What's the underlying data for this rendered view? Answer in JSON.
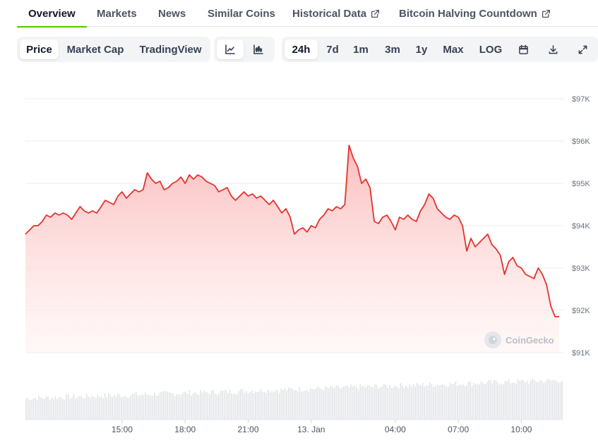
{
  "tabs": [
    {
      "label": "Overview",
      "active": true
    },
    {
      "label": "Markets"
    },
    {
      "label": "News"
    },
    {
      "label": "Similar Coins"
    },
    {
      "label": "Historical Data",
      "external": true
    },
    {
      "label": "Bitcoin Halving Countdown",
      "external": true
    }
  ],
  "toolbar": {
    "view_modes": [
      "Price",
      "Market Cap",
      "TradingView"
    ],
    "chart_style_icons": [
      "line-chart-icon",
      "candlestick-chart-icon"
    ],
    "ranges": [
      "24h",
      "7d",
      "1m",
      "3m",
      "1y",
      "Max",
      "LOG"
    ],
    "selected_view": "Price",
    "selected_range": "24h",
    "selected_style": "line-chart-icon",
    "tool_icons": [
      "calendar-icon",
      "download-icon",
      "fullscreen-icon"
    ]
  },
  "watermark": "CoinGecko",
  "colors": {
    "line": "#e5322d",
    "fill": "#fdd5d5",
    "accent": "#4bcc00",
    "volume": "#e4e6ea"
  },
  "chart_data": {
    "type": "area",
    "title": "",
    "xlabel": "",
    "ylabel": "",
    "x_ticks": [
      "15:00",
      "18:00",
      "21:00",
      "13. Jan",
      "04:00",
      "07:00",
      "10:00"
    ],
    "x_tick_hours": [
      3,
      6,
      9,
      12,
      16,
      19,
      22
    ],
    "y_ticks": [
      "$91K",
      "$92K",
      "$93K",
      "$94K",
      "$95K",
      "$96K",
      "$97K"
    ],
    "y_tick_values": [
      91000,
      92000,
      93000,
      94000,
      95000,
      96000,
      97000
    ],
    "ylim": [
      91000,
      97000
    ],
    "xlim": [
      -1.6,
      23.9
    ],
    "grid": true,
    "series": [
      {
        "points": [
          [
            -1.6,
            93800
          ],
          [
            -1.4,
            93900
          ],
          [
            -1.2,
            94000
          ],
          [
            -1.0,
            94000
          ],
          [
            -0.8,
            94100
          ],
          [
            -0.6,
            94250
          ],
          [
            -0.4,
            94200
          ],
          [
            -0.2,
            94300
          ],
          [
            0.0,
            94250
          ],
          [
            0.2,
            94300
          ],
          [
            0.4,
            94250
          ],
          [
            0.6,
            94150
          ],
          [
            0.8,
            94300
          ],
          [
            1.0,
            94450
          ],
          [
            1.2,
            94350
          ],
          [
            1.4,
            94300
          ],
          [
            1.6,
            94350
          ],
          [
            1.8,
            94300
          ],
          [
            2.0,
            94450
          ],
          [
            2.2,
            94600
          ],
          [
            2.4,
            94550
          ],
          [
            2.6,
            94500
          ],
          [
            2.8,
            94700
          ],
          [
            3.0,
            94800
          ],
          [
            3.2,
            94650
          ],
          [
            3.4,
            94750
          ],
          [
            3.6,
            94850
          ],
          [
            3.8,
            94800
          ],
          [
            4.0,
            94850
          ],
          [
            4.2,
            95250
          ],
          [
            4.4,
            95100
          ],
          [
            4.6,
            95000
          ],
          [
            4.8,
            95050
          ],
          [
            5.0,
            94850
          ],
          [
            5.2,
            94900
          ],
          [
            5.4,
            95000
          ],
          [
            5.6,
            95050
          ],
          [
            5.8,
            95150
          ],
          [
            6.0,
            95000
          ],
          [
            6.2,
            95200
          ],
          [
            6.4,
            95100
          ],
          [
            6.6,
            95200
          ],
          [
            6.8,
            95150
          ],
          [
            7.0,
            95050
          ],
          [
            7.2,
            95000
          ],
          [
            7.4,
            94950
          ],
          [
            7.6,
            94800
          ],
          [
            7.8,
            94850
          ],
          [
            8.0,
            94900
          ],
          [
            8.2,
            94700
          ],
          [
            8.4,
            94600
          ],
          [
            8.6,
            94700
          ],
          [
            8.8,
            94800
          ],
          [
            9.0,
            94700
          ],
          [
            9.2,
            94750
          ],
          [
            9.4,
            94650
          ],
          [
            9.6,
            94700
          ],
          [
            9.8,
            94600
          ],
          [
            10.0,
            94500
          ],
          [
            10.2,
            94600
          ],
          [
            10.4,
            94450
          ],
          [
            10.6,
            94300
          ],
          [
            10.8,
            94400
          ],
          [
            11.0,
            94200
          ],
          [
            11.2,
            93800
          ],
          [
            11.4,
            93900
          ],
          [
            11.6,
            93950
          ],
          [
            11.8,
            93850
          ],
          [
            12.0,
            94000
          ],
          [
            12.2,
            93950
          ],
          [
            12.4,
            94150
          ],
          [
            12.6,
            94250
          ],
          [
            12.8,
            94400
          ],
          [
            13.0,
            94350
          ],
          [
            13.2,
            94450
          ],
          [
            13.4,
            94400
          ],
          [
            13.6,
            94500
          ],
          [
            13.8,
            95900
          ],
          [
            14.0,
            95600
          ],
          [
            14.2,
            95400
          ],
          [
            14.4,
            95000
          ],
          [
            14.6,
            95100
          ],
          [
            14.8,
            94900
          ],
          [
            15.0,
            94100
          ],
          [
            15.2,
            94050
          ],
          [
            15.4,
            94200
          ],
          [
            15.6,
            94250
          ],
          [
            15.8,
            94100
          ],
          [
            16.0,
            93900
          ],
          [
            16.2,
            94200
          ],
          [
            16.4,
            94150
          ],
          [
            16.6,
            94250
          ],
          [
            16.8,
            94150
          ],
          [
            17.0,
            94100
          ],
          [
            17.2,
            94350
          ],
          [
            17.4,
            94500
          ],
          [
            17.6,
            94750
          ],
          [
            17.8,
            94650
          ],
          [
            18.0,
            94400
          ],
          [
            18.2,
            94300
          ],
          [
            18.4,
            94200
          ],
          [
            18.6,
            94150
          ],
          [
            18.8,
            94250
          ],
          [
            19.0,
            94200
          ],
          [
            19.2,
            94000
          ],
          [
            19.4,
            93400
          ],
          [
            19.6,
            93700
          ],
          [
            19.8,
            93500
          ],
          [
            20.0,
            93600
          ],
          [
            20.2,
            93700
          ],
          [
            20.4,
            93800
          ],
          [
            20.6,
            93550
          ],
          [
            20.8,
            93450
          ],
          [
            21.0,
            93300
          ],
          [
            21.2,
            92850
          ],
          [
            21.4,
            93150
          ],
          [
            21.6,
            93250
          ],
          [
            21.8,
            93050
          ],
          [
            22.0,
            93000
          ],
          [
            22.2,
            92850
          ],
          [
            22.4,
            92800
          ],
          [
            22.6,
            92750
          ],
          [
            22.8,
            93000
          ],
          [
            23.0,
            92850
          ],
          [
            23.2,
            92600
          ],
          [
            23.4,
            92100
          ],
          [
            23.6,
            91850
          ],
          [
            23.8,
            91850
          ]
        ]
      }
    ],
    "volume_bars": true
  }
}
